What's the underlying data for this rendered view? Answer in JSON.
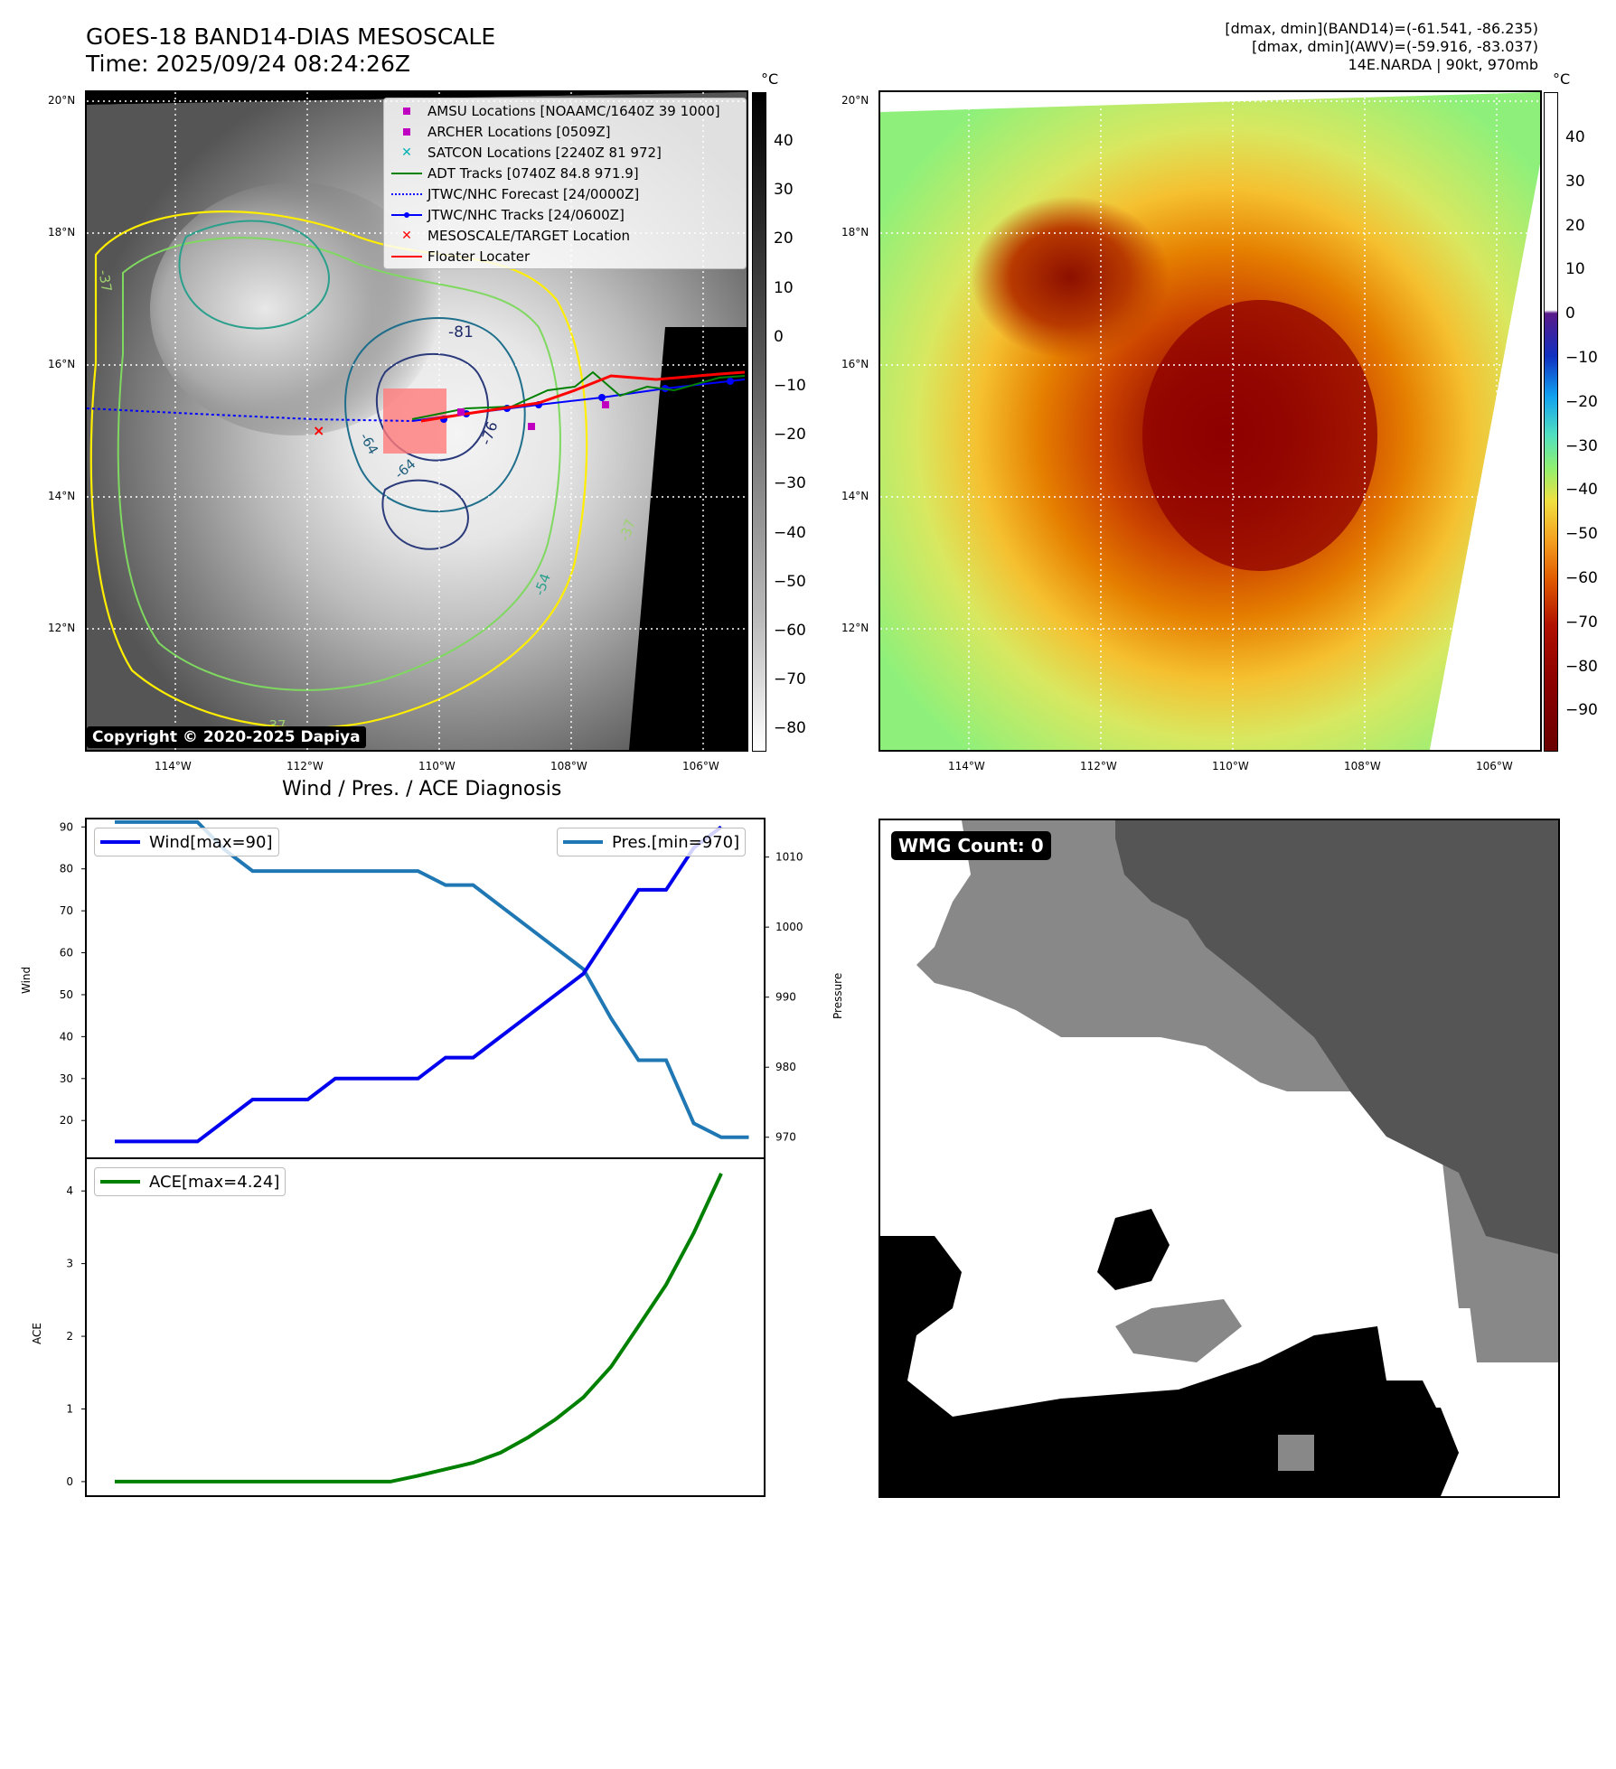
{
  "header": {
    "title_line1": "GOES-18 BAND14-DIAS MESOSCALE",
    "title_line2": "Time: 2025/09/24 08:24:26Z",
    "right_line1": "[dmax, dmin](BAND14)=(-61.541, -86.235)",
    "right_line2": "[dmax, dmin](AWV)=(-59.916, -83.037)",
    "right_line3": "14E.NARDA | 90kt, 970mb"
  },
  "map_axes": {
    "lat_labels": [
      "20°N",
      "18°N",
      "16°N",
      "14°N",
      "12°N"
    ],
    "lon_labels": [
      "114°W",
      "112°W",
      "110°W",
      "108°W",
      "106°W"
    ]
  },
  "ir_panel": {
    "legend": [
      {
        "label": "AMSU Locations [NOAAMC/1640Z 39 1000]",
        "icon": "square-marker",
        "color": "#c000c0"
      },
      {
        "label": "ARCHER Locations [0509Z]",
        "icon": "square-marker",
        "color": "#c000c0"
      },
      {
        "label": "SATCON Locations [2240Z 81 972]",
        "icon": "x-marker",
        "color": "#00b0b0"
      },
      {
        "label": "ADT Tracks [0740Z 84.8 971.9]",
        "icon": "line",
        "color": "#008000"
      },
      {
        "label": "JTWC/NHC Forecast [24/0000Z]",
        "icon": "dotted-line",
        "color": "#0000ff"
      },
      {
        "label": "JTWC/NHC Tracks [24/0600Z]",
        "icon": "dot-line",
        "color": "#0000ff"
      },
      {
        "label": "MESOSCALE/TARGET Location",
        "icon": "x-marker",
        "color": "#ff0000"
      },
      {
        "label": "Floater Locater",
        "icon": "line",
        "color": "#ff0000"
      }
    ],
    "copyright": "Copyright © 2020-2025 Dapiya",
    "contour_labels": [
      "-81",
      "-76",
      "-64",
      "-64",
      "-54",
      "-37",
      "-37",
      "-37"
    ],
    "colorbar_unit": "°C",
    "colorbar_ticks": [
      "40",
      "30",
      "20",
      "10",
      "0",
      "−10",
      "−20",
      "−30",
      "−40",
      "−50",
      "−60",
      "−70",
      "−80"
    ]
  },
  "wv_panel": {
    "colorbar_unit": "°C",
    "colorbar_ticks": [
      "40",
      "30",
      "20",
      "10",
      "0",
      "−10",
      "−20",
      "−30",
      "−40",
      "−50",
      "−60",
      "−70",
      "−80",
      "−90"
    ]
  },
  "wmg_panel": {
    "badge": "WMG Count: 0"
  },
  "chart_data": [
    {
      "type": "line",
      "title": "Wind / Pres. / ACE Diagnosis",
      "x": [
        0,
        1,
        2,
        3,
        4,
        5,
        6,
        7,
        8,
        9,
        10,
        11,
        12,
        13,
        14,
        15,
        16,
        17,
        18,
        19,
        20,
        21,
        22,
        23
      ],
      "series": [
        {
          "name": "Wind[max=90]",
          "axis": "left",
          "color": "#0000ee",
          "values": [
            15,
            15,
            15,
            15,
            20,
            25,
            25,
            25,
            30,
            30,
            30,
            30,
            35,
            35,
            40,
            45,
            50,
            55,
            65,
            75,
            75,
            85,
            90,
            null
          ]
        },
        {
          "name": "Pres.[min=970]",
          "axis": "right",
          "color": "#1f77b4",
          "values": [
            1015,
            1015,
            1015,
            1015,
            1011,
            1008,
            1008,
            1008,
            1008,
            1008,
            1008,
            1008,
            1006,
            1006,
            1003,
            1000,
            997,
            994,
            987,
            981,
            981,
            972,
            970,
            970
          ]
        }
      ],
      "ylabel": "Wind",
      "y2label": "Pressure",
      "ylim": [
        11,
        92
      ],
      "y2lim": [
        967,
        1015.5
      ],
      "yticks": [
        "90",
        "80",
        "70",
        "60",
        "50",
        "40",
        "30",
        "20"
      ],
      "y2ticks": [
        "1010",
        "1000",
        "990",
        "980",
        "970"
      ]
    },
    {
      "type": "line",
      "x": [
        0,
        1,
        2,
        3,
        4,
        5,
        6,
        7,
        8,
        9,
        10,
        11,
        12,
        13,
        14,
        15,
        16,
        17,
        18,
        19,
        20,
        21,
        22,
        23
      ],
      "series": [
        {
          "name": "ACE[max=4.24]",
          "color": "#008000",
          "values": [
            0,
            0,
            0,
            0,
            0,
            0,
            0,
            0,
            0,
            0,
            0,
            0.08,
            0.17,
            0.26,
            0.4,
            0.61,
            0.86,
            1.16,
            1.58,
            2.14,
            2.71,
            3.42,
            4.24,
            null
          ]
        }
      ],
      "ylabel": "ACE",
      "ylim": [
        -0.2,
        4.45
      ],
      "yticks": [
        "4",
        "3",
        "2",
        "1",
        "0"
      ]
    }
  ]
}
